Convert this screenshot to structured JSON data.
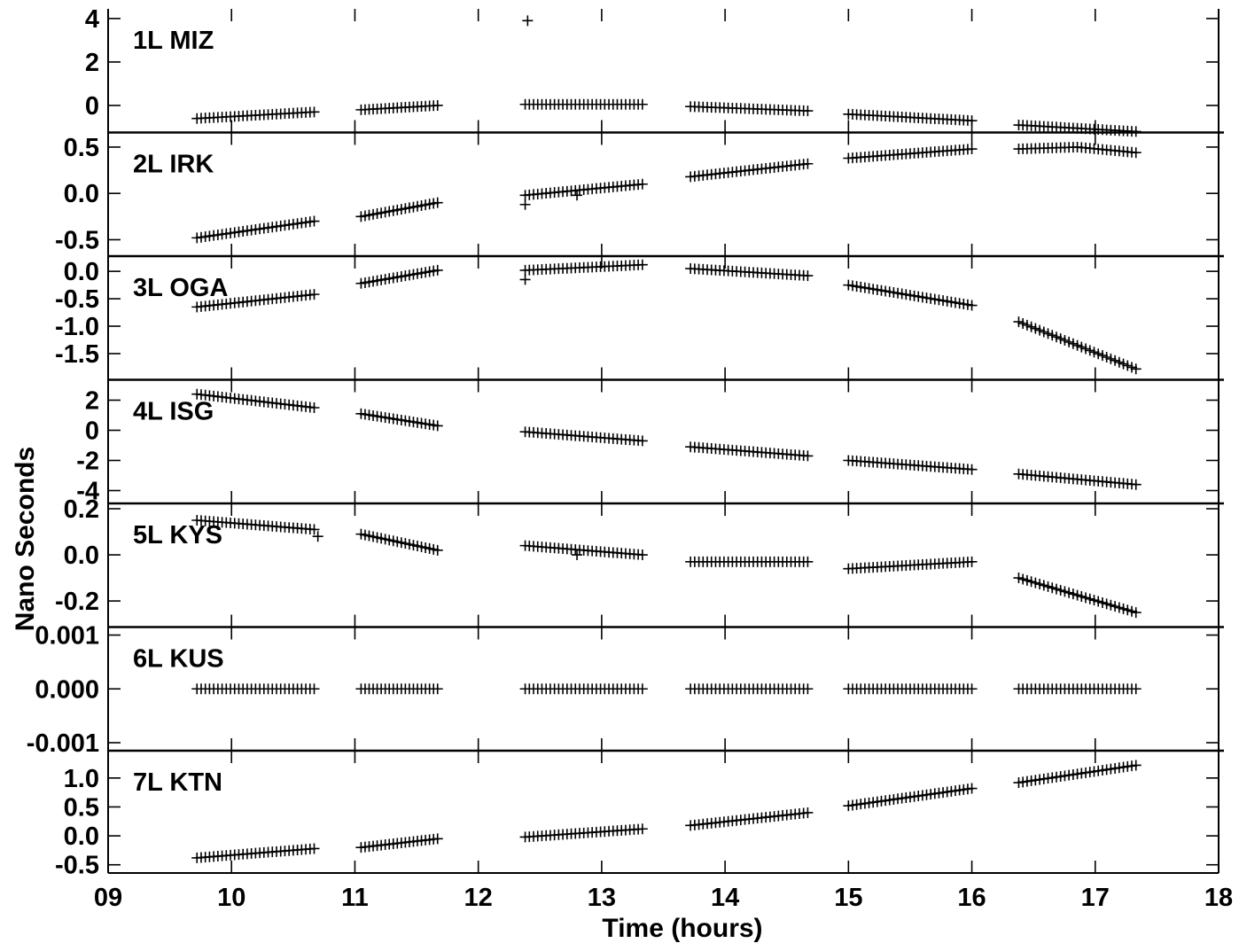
{
  "chart_data": {
    "type": "scatter",
    "marker": "plus",
    "xlabel": "Time (hours)",
    "ylabel": "Nano Seconds",
    "xlim": [
      9,
      18
    ],
    "x_ticks": [
      9,
      10,
      11,
      12,
      13,
      14,
      15,
      16,
      17,
      18
    ],
    "x_tick_labels": [
      "09",
      "10",
      "11",
      "12",
      "13",
      "14",
      "15",
      "16",
      "17",
      "18"
    ],
    "grid": false,
    "segments_x": [
      [
        9.72,
        10.67
      ],
      [
        11.05,
        11.67
      ],
      [
        12.38,
        13.33
      ],
      [
        13.72,
        14.67
      ],
      [
        15.0,
        16.0
      ],
      [
        16.38,
        17.33
      ]
    ],
    "panels": [
      {
        "name": "1L MIZ",
        "ylim": [
          -1.0,
          4.2
        ],
        "y_ticks": [
          4,
          2,
          0
        ],
        "y_tick_labels": [
          "4",
          "2",
          "0"
        ],
        "segments": [
          {
            "y_start": -0.6,
            "y_end": -0.3
          },
          {
            "y_start": -0.2,
            "y_end": 0.0
          },
          {
            "y_start": 0.05,
            "y_end": 0.05
          },
          {
            "y_start": -0.05,
            "y_end": -0.25
          },
          {
            "y_start": -0.4,
            "y_end": -0.7
          },
          {
            "y_start": -0.9,
            "y_end": -1.2
          }
        ],
        "outliers": [
          {
            "x": 12.4,
            "y": 3.9
          }
        ]
      },
      {
        "name": "2L IRK",
        "ylim": [
          -0.62,
          0.6
        ],
        "y_ticks": [
          0.5,
          0.0,
          -0.5
        ],
        "y_tick_labels": [
          "0.5",
          "0.0",
          "-0.5"
        ],
        "segments": [
          {
            "y_start": -0.48,
            "y_end": -0.3
          },
          {
            "y_start": -0.25,
            "y_end": -0.1
          },
          {
            "y_start": -0.02,
            "y_end": 0.1
          },
          {
            "y_start": 0.18,
            "y_end": 0.32
          },
          {
            "y_start": 0.38,
            "y_end": 0.48
          },
          {
            "y_start": 0.48,
            "y_end": 0.44,
            "mid": 0.5
          }
        ],
        "outliers": [
          {
            "x": 12.38,
            "y": -0.12
          },
          {
            "x": 12.8,
            "y": -0.02
          }
        ]
      },
      {
        "name": "3L OGA",
        "ylim": [
          -1.88,
          0.18
        ],
        "y_ticks": [
          0.0,
          -0.5,
          -1.0,
          -1.5
        ],
        "y_tick_labels": [
          "0.0",
          "-0.5",
          "-1.0",
          "-1.5"
        ],
        "segments": [
          {
            "y_start": -0.65,
            "y_end": -0.42
          },
          {
            "y_start": -0.22,
            "y_end": 0.02
          },
          {
            "y_start": 0.02,
            "y_end": 0.12
          },
          {
            "y_start": 0.05,
            "y_end": -0.08
          },
          {
            "y_start": -0.25,
            "y_end": -0.62
          },
          {
            "y_start": -0.92,
            "y_end": -1.78
          }
        ],
        "outliers": [
          {
            "x": 12.38,
            "y": -0.15
          }
        ]
      },
      {
        "name": "4L ISG",
        "ylim": [
          -4.5,
          3.0
        ],
        "y_ticks": [
          2,
          0,
          -2,
          -4
        ],
        "y_tick_labels": [
          "2",
          "0",
          "-2",
          "-4"
        ],
        "segments": [
          {
            "y_start": 2.4,
            "y_end": 1.5
          },
          {
            "y_start": 1.1,
            "y_end": 0.3
          },
          {
            "y_start": -0.1,
            "y_end": -0.7
          },
          {
            "y_start": -1.1,
            "y_end": -1.7
          },
          {
            "y_start": -2.0,
            "y_end": -2.6
          },
          {
            "y_start": -2.9,
            "y_end": -3.6
          }
        ],
        "outliers": []
      },
      {
        "name": "5L KYS",
        "ylim": [
          -0.29,
          0.2
        ],
        "y_ticks": [
          0.2,
          0.0,
          -0.2
        ],
        "y_tick_labels": [
          "0.2",
          "0.0",
          "-0.2"
        ],
        "segments": [
          {
            "y_start": 0.15,
            "y_end": 0.11
          },
          {
            "y_start": 0.09,
            "y_end": 0.02
          },
          {
            "y_start": 0.04,
            "y_end": 0.0
          },
          {
            "y_start": -0.03,
            "y_end": -0.03
          },
          {
            "y_start": -0.06,
            "y_end": -0.03
          },
          {
            "y_start": -0.1,
            "y_end": -0.25
          }
        ],
        "outliers": [
          {
            "x": 12.8,
            "y": 0.0
          },
          {
            "x": 10.7,
            "y": 0.08
          }
        ]
      },
      {
        "name": "6L KUS",
        "ylim": [
          -0.00105,
          0.00105
        ],
        "y_ticks": [
          0.001,
          0.0,
          -0.001
        ],
        "y_tick_labels": [
          "0.001",
          "0.000",
          "-0.001"
        ],
        "segments": [
          {
            "y_start": 0.0,
            "y_end": 0.0
          },
          {
            "y_start": 0.0,
            "y_end": 0.0
          },
          {
            "y_start": 0.0,
            "y_end": 0.0
          },
          {
            "y_start": 0.0,
            "y_end": 0.0
          },
          {
            "y_start": 0.0,
            "y_end": 0.0
          },
          {
            "y_start": 0.0,
            "y_end": 0.0
          }
        ],
        "outliers": []
      },
      {
        "name": "7L KTN",
        "ylim": [
          -0.55,
          1.38
        ],
        "y_ticks": [
          1.0,
          0.5,
          0.0,
          -0.5
        ],
        "y_tick_labels": [
          "1.0",
          "0.5",
          "0.0",
          "-0.5"
        ],
        "segments": [
          {
            "y_start": -0.38,
            "y_end": -0.22
          },
          {
            "y_start": -0.2,
            "y_end": -0.05
          },
          {
            "y_start": -0.02,
            "y_end": 0.12
          },
          {
            "y_start": 0.18,
            "y_end": 0.4
          },
          {
            "y_start": 0.52,
            "y_end": 0.82
          },
          {
            "y_start": 0.92,
            "y_end": 1.22
          }
        ],
        "outliers": []
      }
    ]
  }
}
